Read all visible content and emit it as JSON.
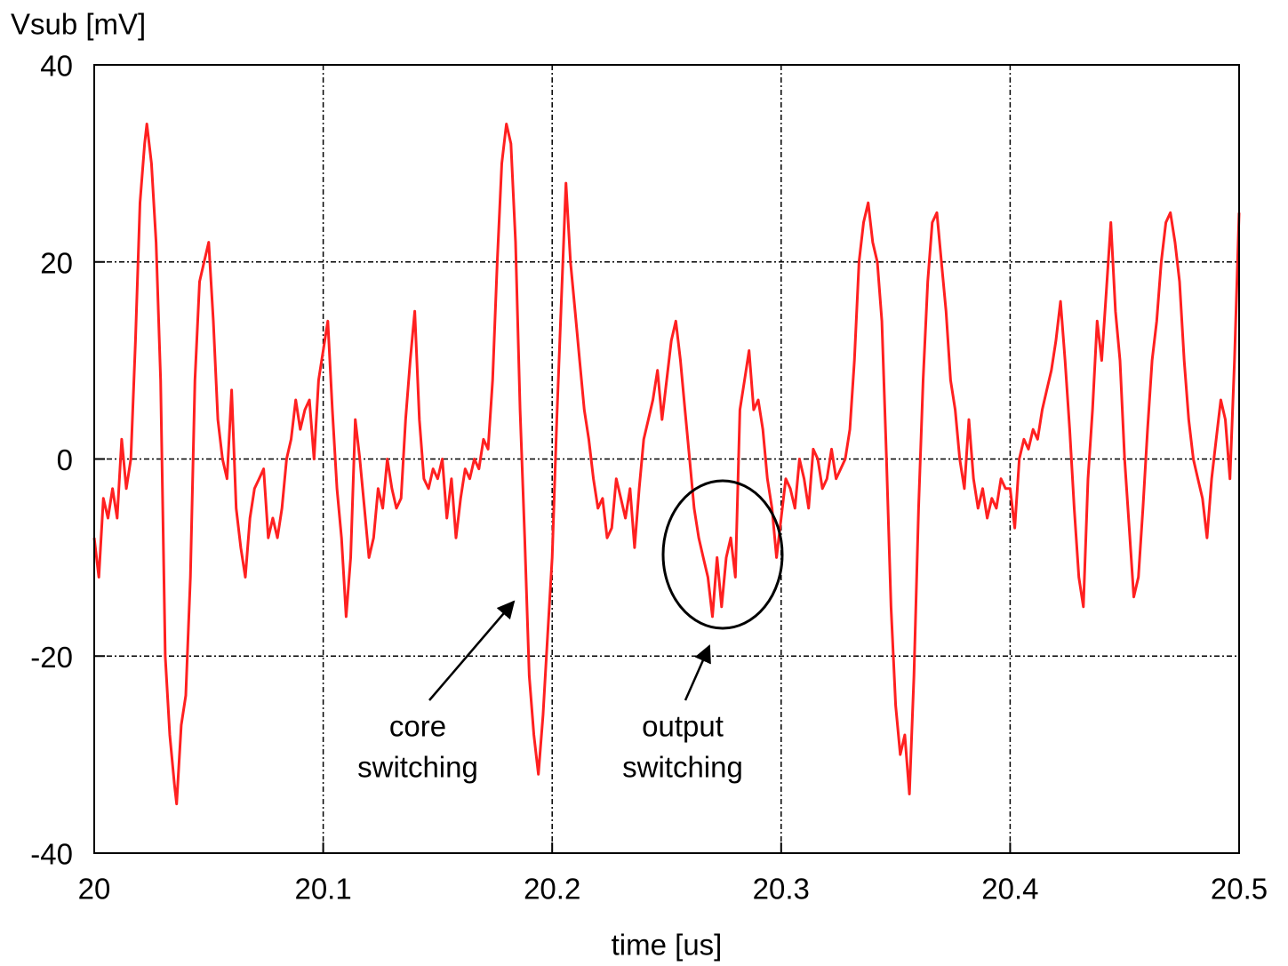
{
  "chart_data": {
    "type": "line",
    "y_label": "Vsub [mV]",
    "x_label": "time [us]",
    "xlim": [
      20,
      20.5
    ],
    "ylim": [
      -40,
      40
    ],
    "xticks": [
      20,
      20.1,
      20.2,
      20.3,
      20.4,
      20.5
    ],
    "yticks": [
      -40,
      -20,
      0,
      20,
      40
    ],
    "grid": true,
    "annotations": [
      {
        "lines": [
          "core",
          "switching"
        ]
      },
      {
        "lines": [
          "output",
          "switching"
        ]
      }
    ],
    "x": [
      20.0,
      20.002,
      20.004,
      20.006,
      20.008,
      20.01,
      20.012,
      20.014,
      20.016,
      20.018,
      20.02,
      20.022,
      20.023,
      20.025,
      20.027,
      20.029,
      20.031,
      20.033,
      20.035,
      20.036,
      20.038,
      20.04,
      20.042,
      20.044,
      20.046,
      20.048,
      20.05,
      20.052,
      20.054,
      20.056,
      20.058,
      20.06,
      20.062,
      20.064,
      20.066,
      20.068,
      20.07,
      20.072,
      20.074,
      20.076,
      20.078,
      20.08,
      20.082,
      20.084,
      20.086,
      20.088,
      20.09,
      20.092,
      20.094,
      20.096,
      20.098,
      20.1,
      20.102,
      20.104,
      20.106,
      20.108,
      20.11,
      20.112,
      20.114,
      20.116,
      20.118,
      20.12,
      20.122,
      20.124,
      20.126,
      20.128,
      20.13,
      20.132,
      20.134,
      20.136,
      20.138,
      20.14,
      20.142,
      20.144,
      20.146,
      20.148,
      20.15,
      20.152,
      20.154,
      20.156,
      20.158,
      20.16,
      20.162,
      20.164,
      20.166,
      20.168,
      20.17,
      20.172,
      20.174,
      20.176,
      20.178,
      20.18,
      20.182,
      20.184,
      20.186,
      20.188,
      20.19,
      20.192,
      20.194,
      20.196,
      20.198,
      20.2,
      20.202,
      20.204,
      20.206,
      20.208,
      20.21,
      20.212,
      20.214,
      20.216,
      20.218,
      20.22,
      20.222,
      20.224,
      20.226,
      20.228,
      20.23,
      20.232,
      20.234,
      20.236,
      20.238,
      20.24,
      20.242,
      20.244,
      20.246,
      20.248,
      20.25,
      20.252,
      20.254,
      20.256,
      20.258,
      20.26,
      20.262,
      20.264,
      20.266,
      20.268,
      20.27,
      20.272,
      20.274,
      20.276,
      20.278,
      20.28,
      20.282,
      20.284,
      20.286,
      20.288,
      20.29,
      20.292,
      20.294,
      20.296,
      20.298,
      20.3,
      20.302,
      20.304,
      20.306,
      20.308,
      20.31,
      20.312,
      20.314,
      20.316,
      20.318,
      20.32,
      20.322,
      20.324,
      20.326,
      20.328,
      20.33,
      20.332,
      20.334,
      20.336,
      20.338,
      20.34,
      20.342,
      20.344,
      20.346,
      20.348,
      20.35,
      20.352,
      20.354,
      20.356,
      20.358,
      20.36,
      20.362,
      20.364,
      20.366,
      20.368,
      20.37,
      20.372,
      20.374,
      20.376,
      20.378,
      20.38,
      20.382,
      20.384,
      20.386,
      20.388,
      20.39,
      20.392,
      20.394,
      20.396,
      20.398,
      20.4,
      20.402,
      20.404,
      20.406,
      20.408,
      20.41,
      20.412,
      20.414,
      20.416,
      20.418,
      20.42,
      20.422,
      20.424,
      20.426,
      20.428,
      20.43,
      20.432,
      20.434,
      20.436,
      20.438,
      20.44,
      20.442,
      20.444,
      20.446,
      20.448,
      20.45,
      20.452,
      20.454,
      20.456,
      20.458,
      20.46,
      20.462,
      20.464,
      20.466,
      20.468,
      20.47,
      20.472,
      20.474,
      20.476,
      20.478,
      20.48,
      20.482,
      20.484,
      20.486,
      20.488,
      20.49,
      20.492,
      20.494,
      20.496,
      20.498,
      20.5
    ],
    "series": [
      {
        "color": "#ff2020",
        "values": [
          -8,
          -12,
          -4,
          -6,
          -3,
          -6,
          2,
          -3,
          0,
          12,
          26,
          32,
          34,
          30,
          22,
          8,
          -20,
          -28,
          -33,
          -35,
          -27,
          -24,
          -12,
          8,
          18,
          20,
          22,
          14,
          4,
          0,
          -2,
          7,
          -5,
          -9,
          -12,
          -6,
          -3,
          -2,
          -1,
          -8,
          -6,
          -8,
          -5,
          0,
          2,
          6,
          3,
          5,
          6,
          0,
          8,
          11,
          14,
          5,
          -3,
          -8,
          -16,
          -10,
          4,
          0,
          -5,
          -10,
          -8,
          -3,
          -5,
          0,
          -3,
          -5,
          -4,
          4,
          10,
          15,
          4,
          -2,
          -3,
          -1,
          -2,
          0,
          -6,
          -2,
          -8,
          -4,
          -1,
          -2,
          0,
          -1,
          2,
          1,
          8,
          20,
          30,
          34,
          32,
          22,
          5,
          -8,
          -22,
          -28,
          -32,
          -26,
          -18,
          -10,
          4,
          16,
          28,
          20,
          15,
          10,
          5,
          2,
          -2,
          -5,
          -4,
          -8,
          -7,
          -2,
          -4,
          -6,
          -3,
          -9,
          -3,
          2,
          4,
          6,
          9,
          4,
          8,
          12,
          14,
          10,
          5,
          0,
          -5,
          -8,
          -10,
          -12,
          -16,
          -10,
          -15,
          -10,
          -8,
          -12,
          5,
          8,
          11,
          5,
          6,
          3,
          -2,
          -5,
          -10,
          -6,
          -2,
          -3,
          -5,
          0,
          -2,
          -5,
          1,
          0,
          -3,
          -2,
          1,
          -2,
          -1,
          0,
          3,
          10,
          20,
          24,
          26,
          22,
          20,
          14,
          0,
          -15,
          -25,
          -30,
          -28,
          -34,
          -22,
          -5,
          8,
          18,
          24,
          25,
          20,
          15,
          8,
          5,
          0,
          -3,
          4,
          -2,
          -5,
          -3,
          -6,
          -4,
          -5,
          -2,
          -3,
          -3,
          -7,
          0,
          2,
          1,
          3,
          2,
          5,
          7,
          9,
          12,
          16,
          10,
          3,
          -5,
          -12,
          -15,
          -2,
          5,
          14,
          10,
          17,
          24,
          15,
          10,
          0,
          -7,
          -14,
          -12,
          -5,
          3,
          10,
          14,
          20,
          24,
          25,
          22,
          18,
          10,
          4,
          0,
          -2,
          -4,
          -8,
          -2,
          2,
          6,
          4,
          -2,
          10,
          25
        ]
      }
    ]
  }
}
